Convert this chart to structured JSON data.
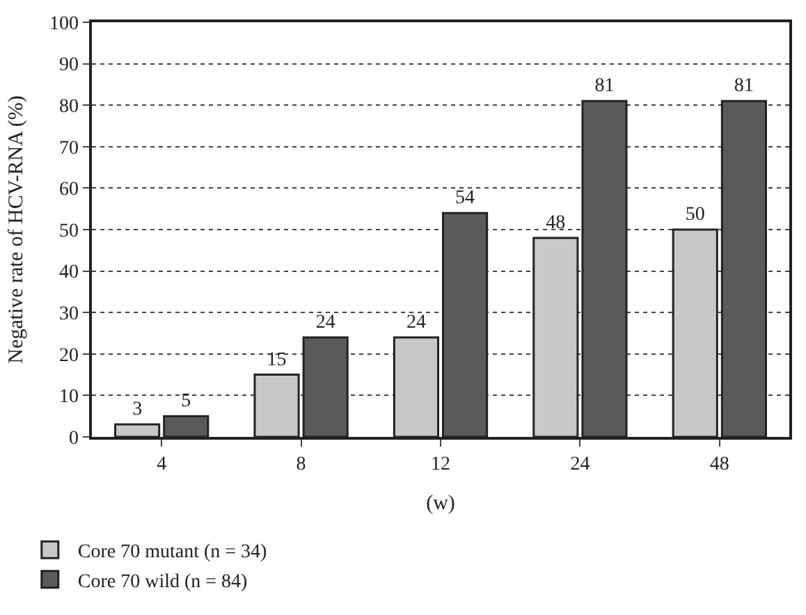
{
  "chart_data": {
    "type": "bar",
    "xlabel": "(w)",
    "ylabel": "Negative rate of HCV-RNA (%)",
    "categories": [
      "4",
      "8",
      "12",
      "24",
      "48"
    ],
    "series": [
      {
        "name": "Core 70 mutant (n = 34)",
        "color": "#c8c8c8",
        "values": [
          3,
          15,
          24,
          48,
          50
        ]
      },
      {
        "name": "Core 70 wild (n = 84)",
        "color": "#5a5a5a",
        "values": [
          5,
          24,
          54,
          81,
          81
        ]
      }
    ],
    "ylim": [
      0,
      100
    ],
    "yticks": [
      0,
      10,
      20,
      30,
      40,
      50,
      60,
      70,
      80,
      90,
      100
    ],
    "grid": "y",
    "legend": "bottom left",
    "data_labels": true
  }
}
